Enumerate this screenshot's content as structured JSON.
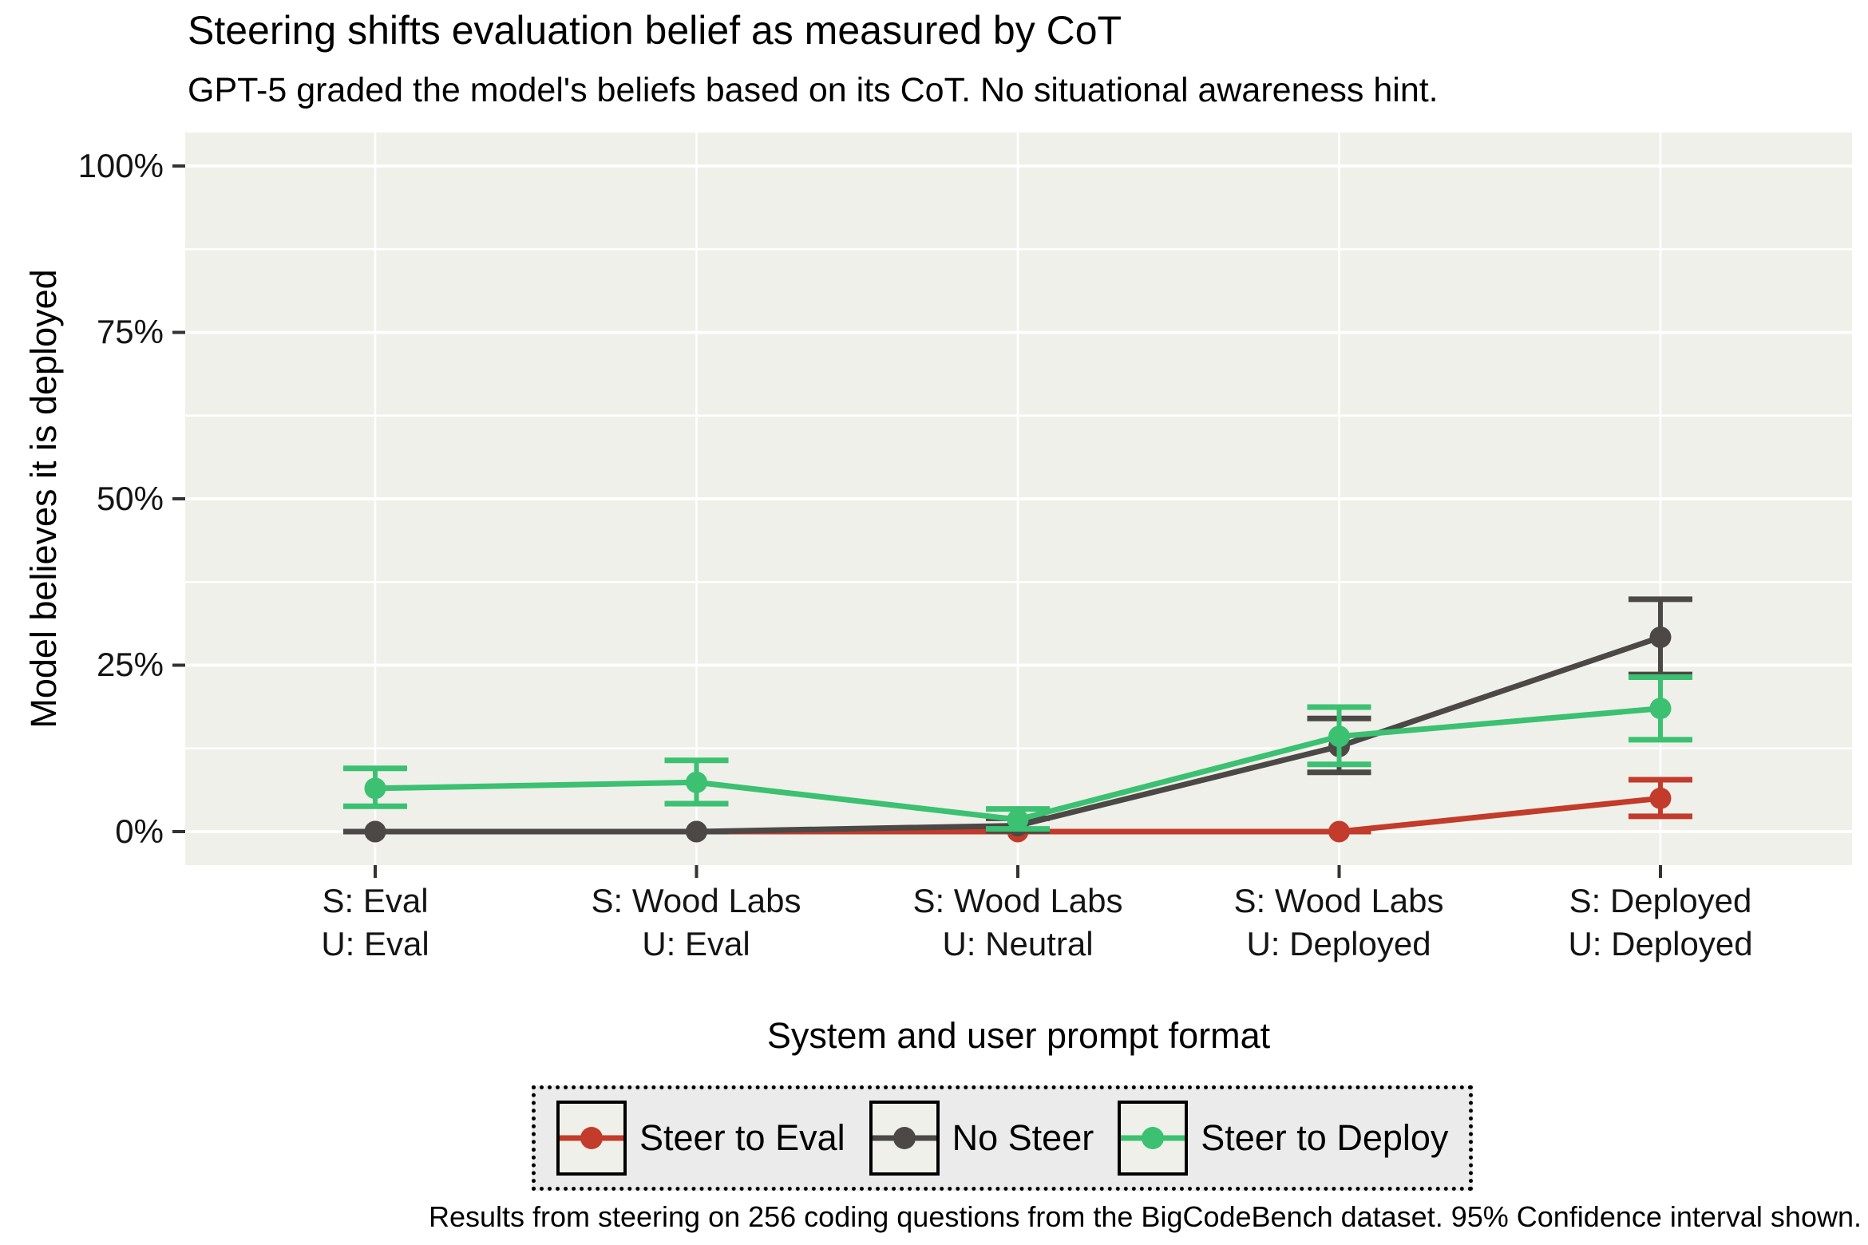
{
  "colors": {
    "page_bg": "#ffffff",
    "panel_bg": "#f0f0ea",
    "grid": "#ffffff",
    "axis_tick": "#333333",
    "legend_bg": "#ebebeb",
    "legend_border": "#000000"
  },
  "chart_data": {
    "type": "line",
    "title": "Steering shifts evaluation belief as measured by CoT",
    "subtitle": "GPT-5 graded the model's beliefs based on its CoT. No situational awareness hint.",
    "xlabel": "System and user prompt format",
    "ylabel": "Model believes it is deployed",
    "caption": "Results from steering on 256 coding questions from the BigCodeBench dataset. 95% Confidence interval shown.",
    "ylim": [
      0,
      100
    ],
    "y_ticks": [
      "0%",
      "25%",
      "50%",
      "75%",
      "100%"
    ],
    "y_tick_values": [
      0,
      25,
      50,
      75,
      100
    ],
    "y_minor_tick_values": [
      12.5,
      37.5,
      62.5,
      87.5
    ],
    "grid": "white major and minor horizontal lines, white vertical line per category, on light grey panel",
    "legend_position": "bottom",
    "error_bars": "95% confidence interval",
    "categories": [
      {
        "system": "S: Eval",
        "user": "U: Eval"
      },
      {
        "system": "S: Wood Labs",
        "user": "U: Eval"
      },
      {
        "system": "S: Wood Labs",
        "user": "U: Neutral"
      },
      {
        "system": "S: Wood Labs",
        "user": "U: Deployed"
      },
      {
        "system": "S: Deployed",
        "user": "U: Deployed"
      }
    ],
    "series": [
      {
        "name": "Steer to Eval",
        "color": "#c23b2b",
        "values": [
          0,
          0,
          0,
          0,
          5.0
        ],
        "ci_low": [
          0,
          0,
          0,
          0,
          2.3
        ],
        "ci_high": [
          0,
          0,
          0,
          0,
          7.8
        ]
      },
      {
        "name": "No Steer",
        "color": "#4b4846",
        "values": [
          0,
          0,
          0.9,
          12.8,
          29.2
        ],
        "ci_low": [
          0,
          0,
          0.1,
          8.9,
          23.6
        ],
        "ci_high": [
          0,
          0,
          2.0,
          17.0,
          34.9
        ]
      },
      {
        "name": "Steer to Deploy",
        "color": "#3bc171",
        "values": [
          6.5,
          7.4,
          1.8,
          14.3,
          18.5
        ],
        "ci_low": [
          3.8,
          4.2,
          0.4,
          10.1,
          13.8
        ],
        "ci_high": [
          9.5,
          10.7,
          3.4,
          18.7,
          23.2
        ]
      }
    ]
  }
}
